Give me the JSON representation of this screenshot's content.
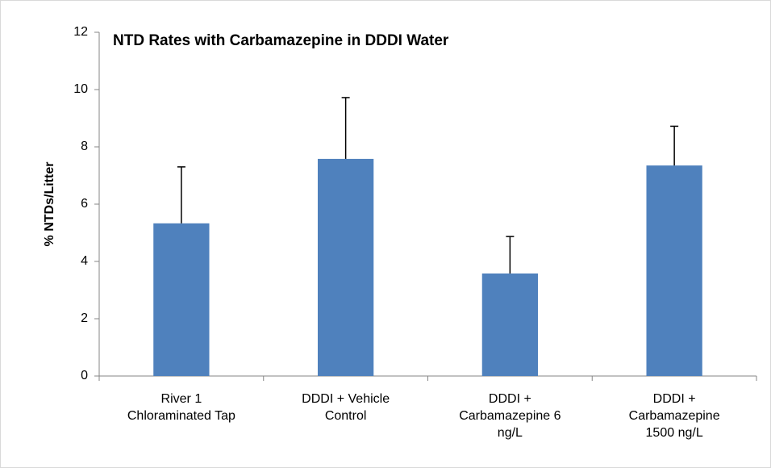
{
  "chart_data": {
    "type": "bar",
    "title": "NTD Rates with Carbamazepine in DDDI Water",
    "y_label": "% NTDs/Litter",
    "categories": [
      "River 1\nChloraminated Tap",
      "DDDI + Vehicle\nControl",
      "DDDI +\nCarbamazepine 6\nng/L",
      "DDDI +\nCarbamazepine\n1500 ng/L"
    ],
    "values": [
      5.33,
      7.58,
      3.58,
      7.35
    ],
    "errors": [
      1.97,
      2.14,
      1.29,
      1.37
    ],
    "color": "#4f81bd",
    "ylim": [
      0,
      12
    ],
    "yticks": [
      0,
      2,
      4,
      6,
      8,
      10,
      12
    ],
    "grid": false
  }
}
